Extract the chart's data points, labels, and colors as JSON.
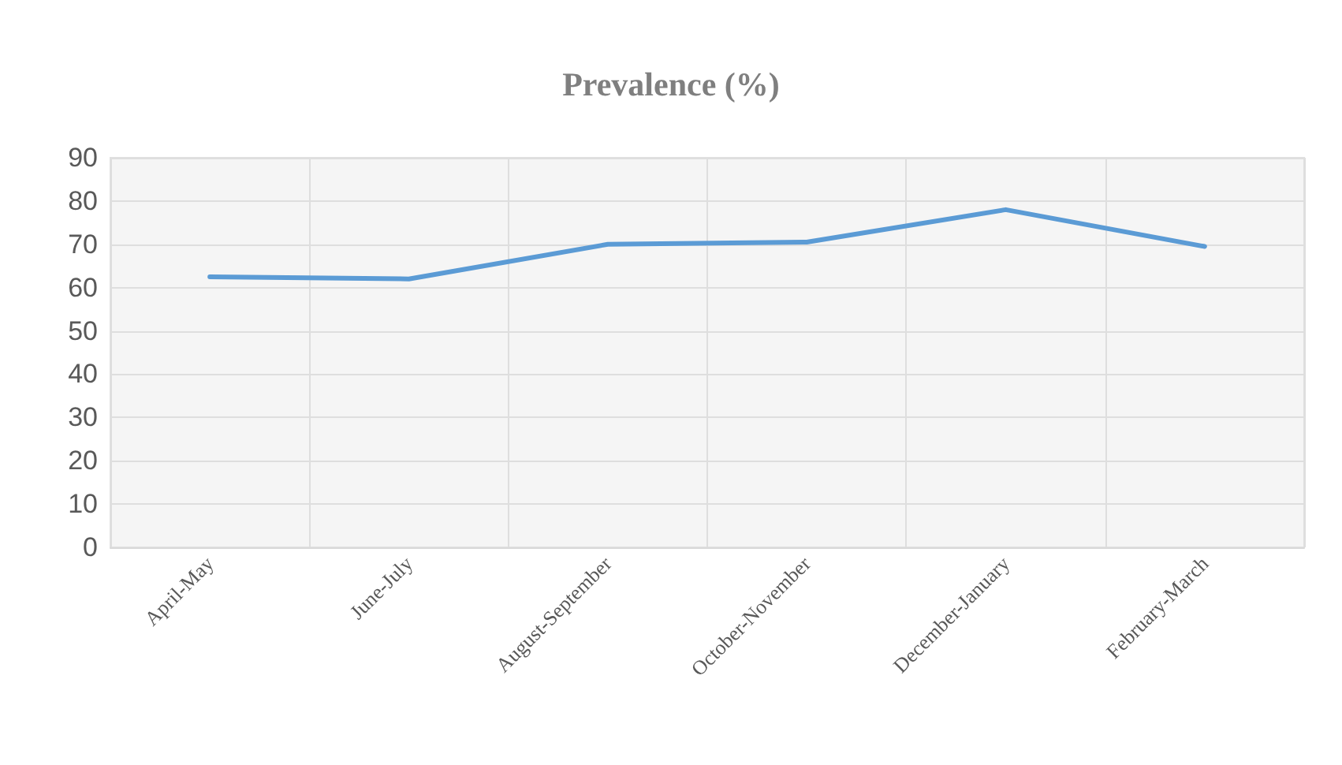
{
  "chart_data": {
    "type": "line",
    "title": "Prevalence (%)",
    "categories": [
      "April-May",
      "June-July",
      "August-September",
      "October-November",
      "December-January",
      "February-March"
    ],
    "series": [
      {
        "color": "#5b9bd5",
        "values": [
          62.5,
          62,
          70,
          70.5,
          78,
          69.5
        ]
      }
    ],
    "ylim": [
      0,
      90
    ],
    "yticks": [
      0,
      10,
      20,
      30,
      40,
      50,
      60,
      70,
      80,
      90
    ],
    "grid": true,
    "marker": "none",
    "line_style": "solid"
  }
}
